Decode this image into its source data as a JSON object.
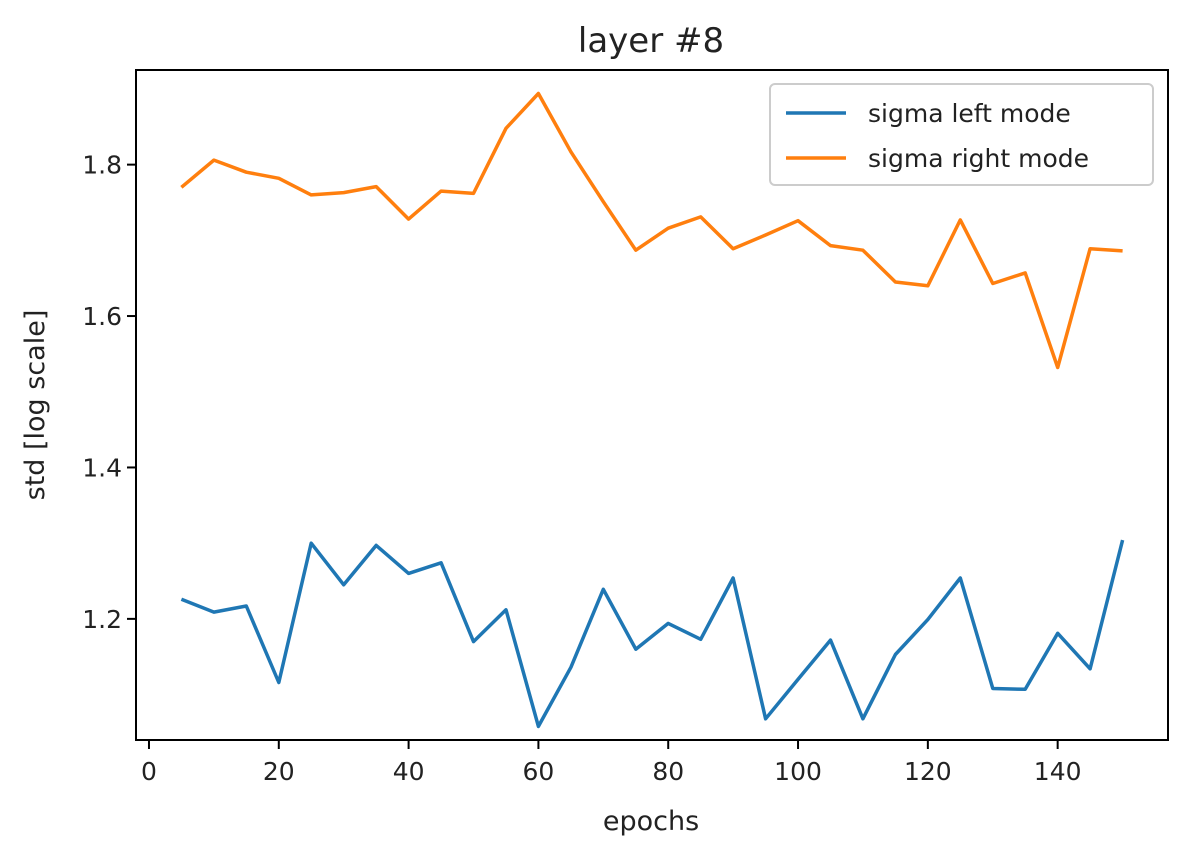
{
  "chart_data": {
    "type": "line",
    "title": "layer #8",
    "xlabel": "epochs",
    "ylabel": "std [log scale]",
    "xlim": [
      -2,
      157
    ],
    "ylim": [
      1.04,
      1.925
    ],
    "xticks": [
      0,
      20,
      40,
      60,
      80,
      100,
      120,
      140
    ],
    "yticks": [
      1.2,
      1.4,
      1.6,
      1.8
    ],
    "xtick_labels": [
      "0",
      "20",
      "40",
      "60",
      "80",
      "100",
      "120",
      "140"
    ],
    "ytick_labels": [
      "1.2",
      "1.4",
      "1.6",
      "1.8"
    ],
    "grid": false,
    "legend_position": "upper right",
    "x": [
      5,
      10,
      15,
      20,
      25,
      30,
      35,
      40,
      45,
      50,
      55,
      60,
      65,
      70,
      75,
      80,
      85,
      90,
      95,
      100,
      105,
      110,
      115,
      120,
      125,
      130,
      135,
      140,
      145,
      150
    ],
    "series": [
      {
        "name": "sigma left mode",
        "color": "#1f77b4",
        "values": [
          1.226,
          1.209,
          1.217,
          1.116,
          1.3,
          1.245,
          1.297,
          1.26,
          1.274,
          1.17,
          1.212,
          1.058,
          1.136,
          1.239,
          1.16,
          1.194,
          1.173,
          1.254,
          1.068,
          1.12,
          1.172,
          1.068,
          1.153,
          1.199,
          1.254,
          1.108,
          1.107,
          1.181,
          1.134,
          1.304
        ]
      },
      {
        "name": "sigma right mode",
        "color": "#ff7f0e",
        "values": [
          1.77,
          1.806,
          1.79,
          1.782,
          1.76,
          1.763,
          1.771,
          1.728,
          1.765,
          1.762,
          1.848,
          1.894,
          1.817,
          1.751,
          1.687,
          1.716,
          1.731,
          1.689,
          1.707,
          1.726,
          1.693,
          1.687,
          1.645,
          1.64,
          1.727,
          1.643,
          1.657,
          1.532,
          1.689,
          1.686
        ]
      }
    ]
  }
}
